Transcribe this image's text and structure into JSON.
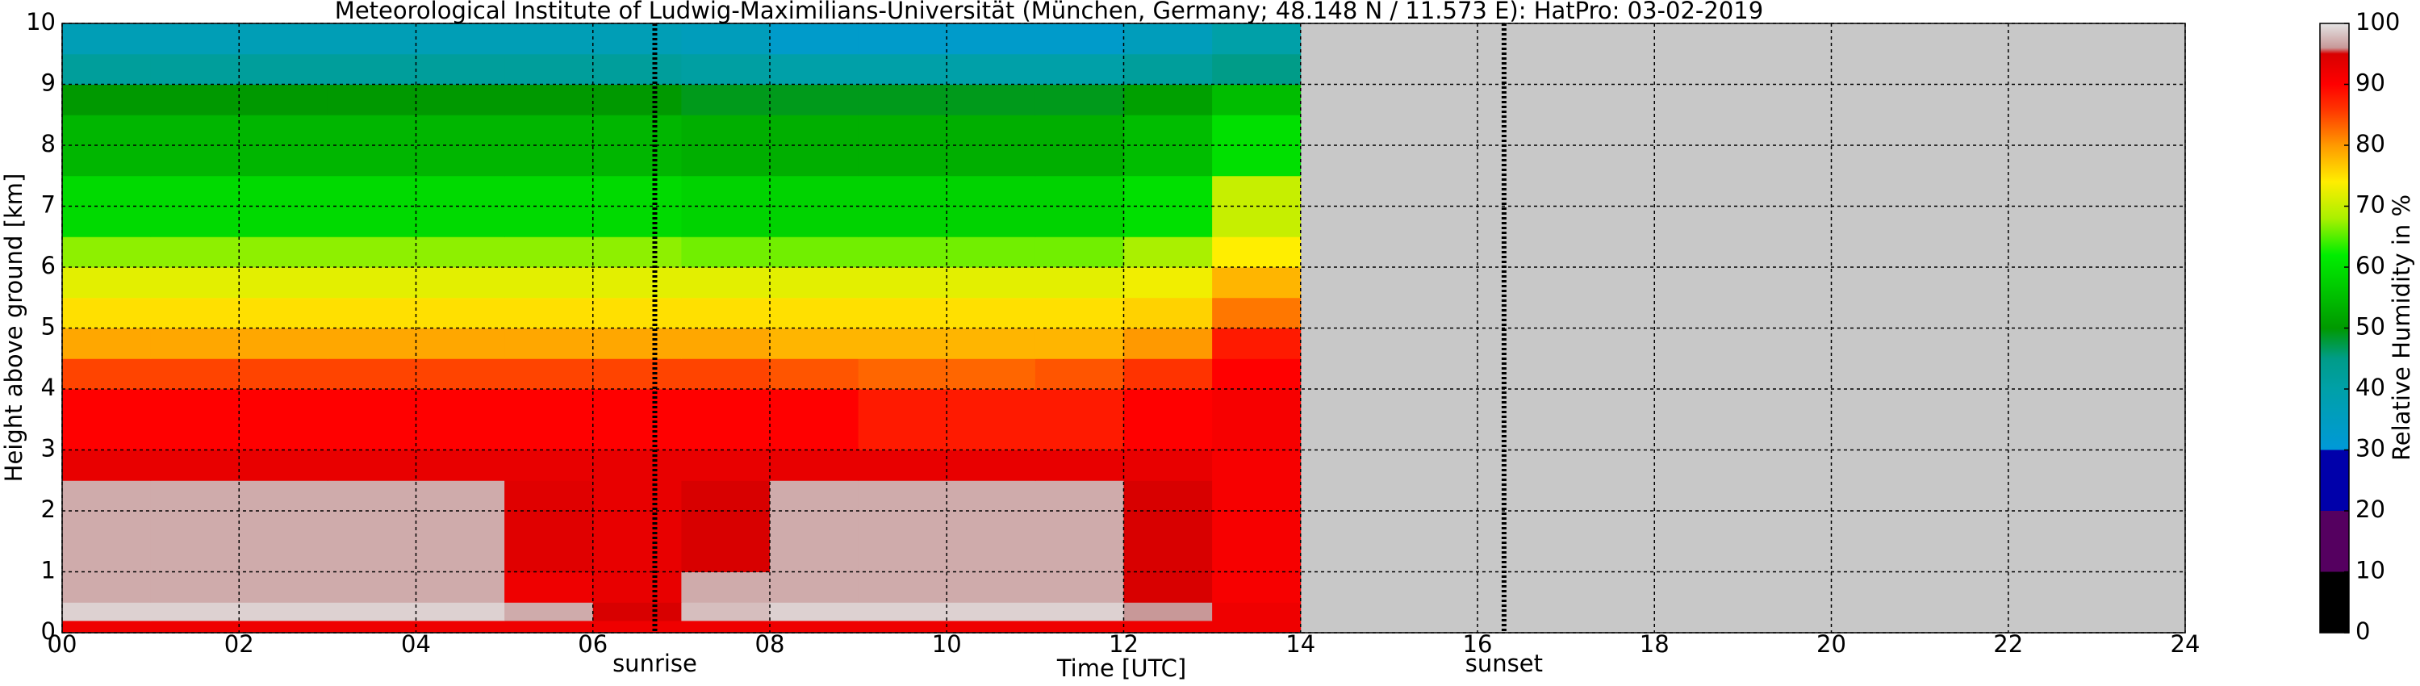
{
  "chart_data": {
    "type": "heatmap",
    "title": "Meteorological Institute of Ludwig-Maximilians-Universität (München, Germany; 48.148 N / 11.573 E):    HatPro: 03-02-2019",
    "xlabel": "Time [UTC]",
    "ylabel": "Height above ground [km]",
    "colorbar_label": "Relative Humidity in %",
    "xlim": [
      0,
      24
    ],
    "ylim": [
      0,
      10
    ],
    "xticks": [
      {
        "value": 0,
        "label": "00"
      },
      {
        "value": 2,
        "label": "02"
      },
      {
        "value": 4,
        "label": "04"
      },
      {
        "value": 6,
        "label": "06"
      },
      {
        "value": 8,
        "label": "08"
      },
      {
        "value": 10,
        "label": "10"
      },
      {
        "value": 12,
        "label": "12"
      },
      {
        "value": 14,
        "label": "14"
      },
      {
        "value": 16,
        "label": "16"
      },
      {
        "value": 18,
        "label": "18"
      },
      {
        "value": 20,
        "label": "20"
      },
      {
        "value": 22,
        "label": "22"
      },
      {
        "value": 24,
        "label": "24"
      }
    ],
    "yticks": [
      0,
      1,
      2,
      3,
      4,
      5,
      6,
      7,
      8,
      9,
      10
    ],
    "clim": [
      0,
      100
    ],
    "cticks": [
      0,
      10,
      20,
      30,
      40,
      50,
      60,
      70,
      80,
      90,
      100
    ],
    "grid": true,
    "missing_color": "#c8c8c8",
    "colormap": [
      [
        0,
        "#000000"
      ],
      [
        10,
        "#000000"
      ],
      [
        10,
        "#550060"
      ],
      [
        20,
        "#550060"
      ],
      [
        20,
        "#0000aa"
      ],
      [
        30,
        "#0000aa"
      ],
      [
        30,
        "#0099d8"
      ],
      [
        40,
        "#00a0a8"
      ],
      [
        45,
        "#009c88"
      ],
      [
        50,
        "#009900"
      ],
      [
        57,
        "#00cc00"
      ],
      [
        62,
        "#00ee00"
      ],
      [
        68,
        "#aaf000"
      ],
      [
        74,
        "#ffee00"
      ],
      [
        80,
        "#ff9900"
      ],
      [
        86,
        "#ff3300"
      ],
      [
        90,
        "#ff0000"
      ],
      [
        95,
        "#d80000"
      ],
      [
        96,
        "#c89898"
      ],
      [
        100,
        "#e4e4e4"
      ]
    ],
    "markers": [
      {
        "x": 6.7,
        "label": "sunrise"
      },
      {
        "x": 16.3,
        "label": "sunset"
      }
    ],
    "xbins": [
      0,
      1,
      2,
      3,
      4,
      5,
      6,
      7,
      8,
      9,
      10,
      11,
      12,
      13,
      14
    ],
    "ybins": [
      0,
      0.2,
      0.5,
      1,
      2.5,
      3,
      4,
      4.5,
      5,
      5.5,
      6,
      6.5,
      7.5,
      8.5,
      9,
      9.5,
      10
    ],
    "values": [
      [
        92,
        92,
        92,
        92,
        92,
        92,
        92,
        92,
        92,
        92,
        92,
        92,
        92,
        92
      ],
      [
        99,
        99,
        99,
        99,
        99,
        97,
        95,
        98,
        99,
        99,
        99,
        99,
        96,
        92
      ],
      [
        97,
        97,
        97,
        97,
        97,
        92,
        93,
        97,
        97,
        97,
        97,
        97,
        95,
        91
      ],
      [
        97,
        97,
        97,
        97,
        97,
        94,
        93,
        95,
        97,
        97,
        97,
        97,
        95,
        91
      ],
      [
        93,
        93,
        93,
        93,
        93,
        93,
        93,
        93,
        93,
        93,
        93,
        93,
        93,
        91
      ],
      [
        90,
        90,
        90,
        90,
        90,
        90,
        90,
        90,
        90,
        88,
        88,
        88,
        90,
        91
      ],
      [
        85,
        85,
        85,
        85,
        85,
        85,
        85,
        85,
        84,
        83,
        83,
        84,
        86,
        90
      ],
      [
        79,
        79,
        79,
        79,
        79,
        79,
        79,
        79,
        78,
        78,
        78,
        78,
        80,
        88
      ],
      [
        75,
        75,
        75,
        75,
        75,
        75,
        75,
        75,
        75,
        75,
        75,
        75,
        76,
        82
      ],
      [
        72,
        72,
        72,
        72,
        72,
        72,
        72,
        72,
        72,
        72,
        72,
        72,
        73,
        78
      ],
      [
        67,
        67,
        67,
        67,
        67,
        67,
        67,
        66,
        66,
        66,
        66,
        66,
        68,
        74
      ],
      [
        59,
        59,
        59,
        59,
        59,
        59,
        59,
        58,
        58,
        58,
        58,
        58,
        60,
        70
      ],
      [
        54,
        54,
        54,
        54,
        54,
        54,
        54,
        53,
        53,
        53,
        53,
        53,
        55,
        60
      ],
      [
        50,
        50,
        50,
        50,
        50,
        50,
        50,
        49,
        49,
        49,
        49,
        49,
        51,
        55
      ],
      [
        42,
        42,
        42,
        42,
        42,
        42,
        42,
        41,
        40,
        40,
        40,
        40,
        42,
        45
      ],
      [
        37,
        37,
        37,
        37,
        37,
        37,
        37,
        36,
        33,
        33,
        33,
        33,
        36,
        40
      ]
    ]
  }
}
